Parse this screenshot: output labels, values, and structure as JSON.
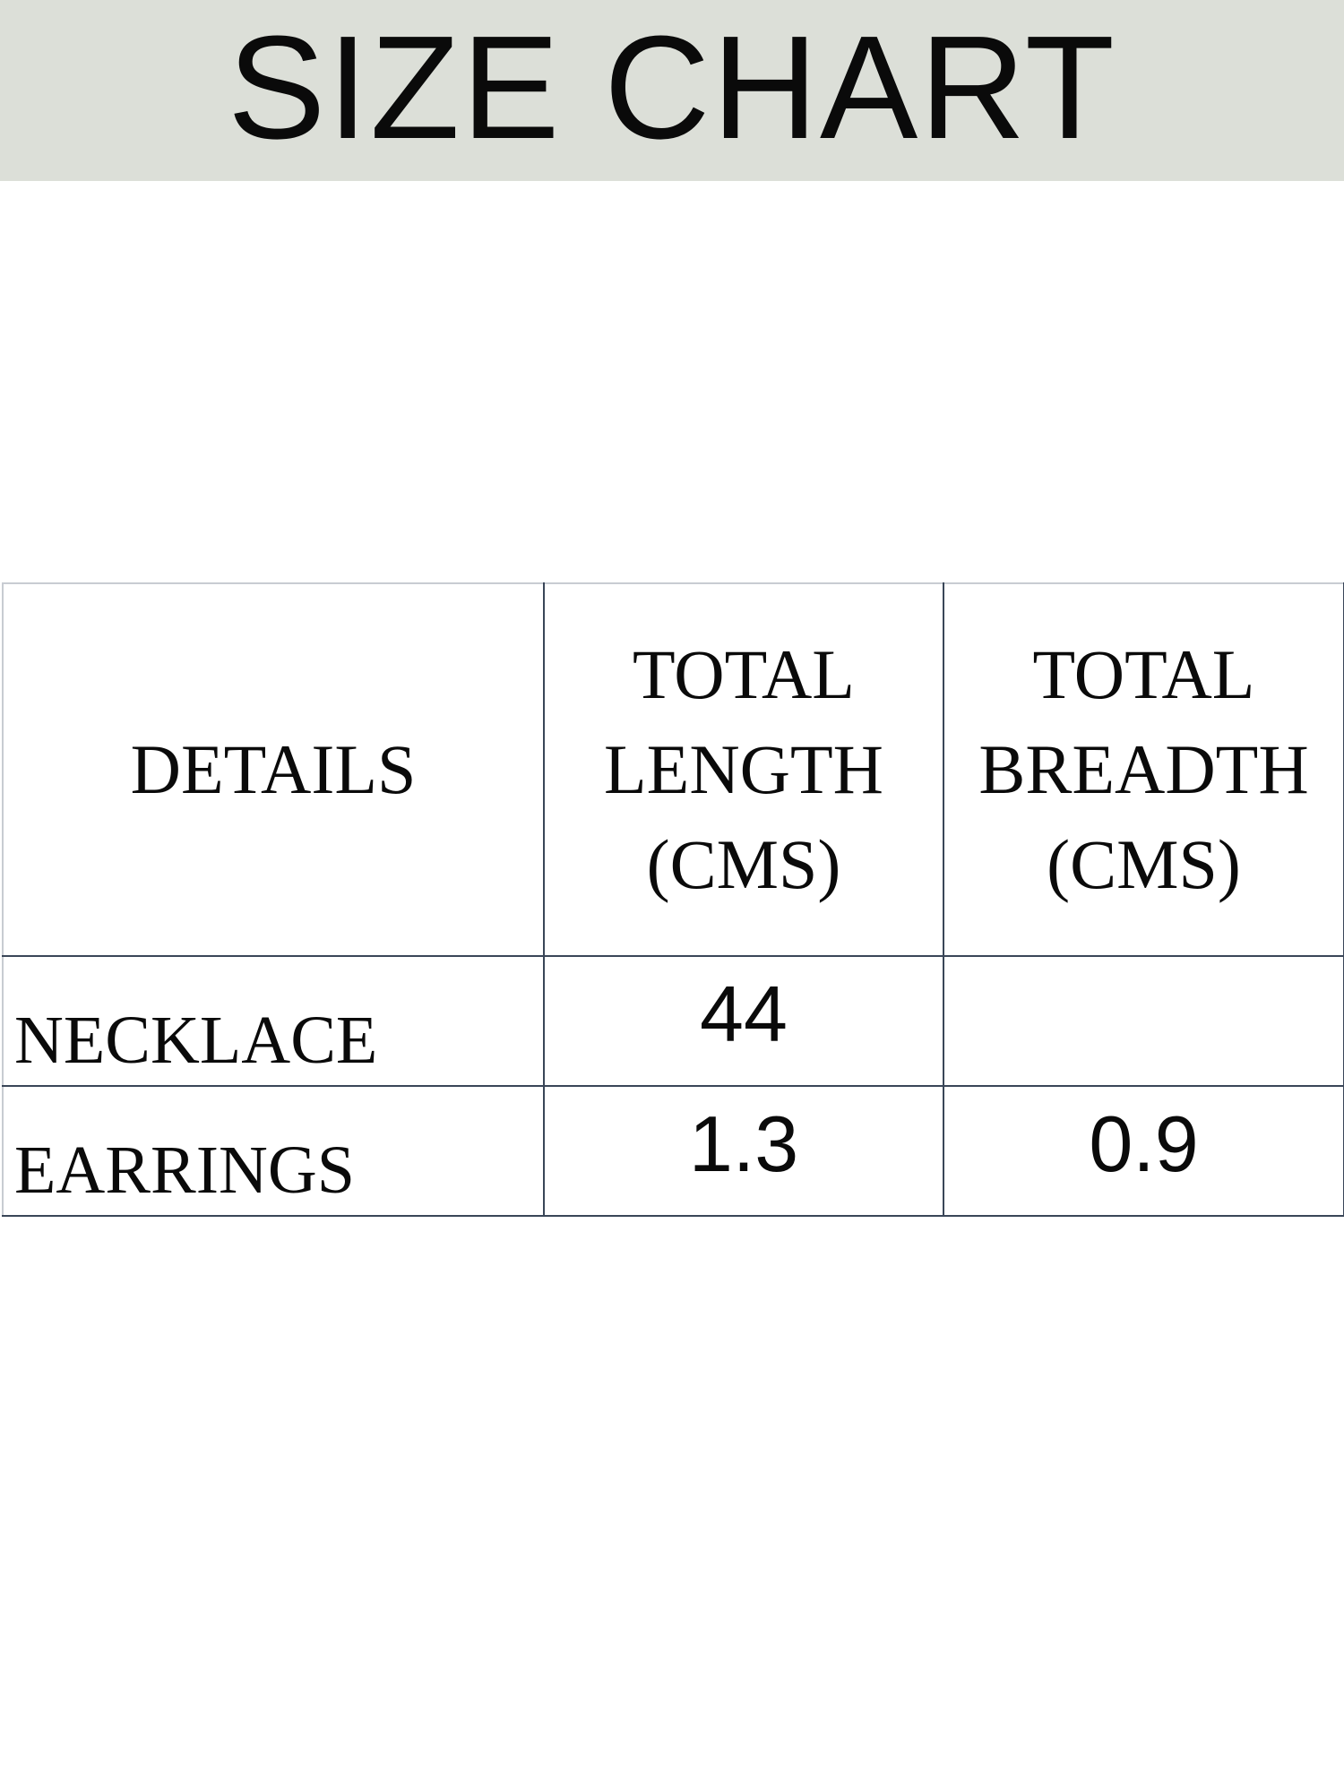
{
  "header": {
    "title": "SIZE CHART",
    "background_color": "#dcdfd8"
  },
  "table": {
    "columns": [
      {
        "lines": [
          "DETAILS"
        ]
      },
      {
        "lines": [
          "TOTAL",
          "LENGTH",
          "(CMS)"
        ]
      },
      {
        "lines": [
          "TOTAL",
          "BREADTH",
          "(CMS)"
        ]
      }
    ],
    "rows": [
      {
        "label": "NECKLACE",
        "length": "44",
        "breadth": ""
      },
      {
        "label": "EARRINGS",
        "length": "1.3",
        "breadth": "0.9"
      }
    ],
    "border_color": "#3a4658"
  }
}
